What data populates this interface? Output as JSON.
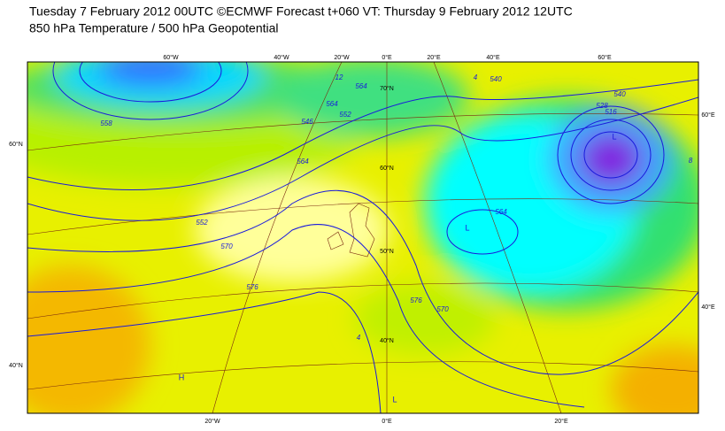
{
  "header": {
    "title": "Tuesday 7 February 2012 00UTC ©ECMWF Forecast t+060 VT: Thursday 9 February 2012 12UTC",
    "subtitle": "850 hPa Temperature / 500 hPa Geopotential"
  },
  "map": {
    "graticule_labels": [
      "60°W",
      "40°W",
      "20°W",
      "0°E",
      "20°E",
      "40°E",
      "60°E",
      "20°W",
      "0°E",
      "20°E",
      "60°N",
      "40°N",
      "60°E",
      "40°E",
      "70°N",
      "60°N",
      "50°N",
      "40°N"
    ],
    "contour_labels": [
      "552",
      "570",
      "576",
      "564",
      "564",
      "540",
      "516",
      "528",
      "540",
      "546",
      "552",
      "558",
      "564",
      "564",
      "570",
      "576",
      "12",
      "4",
      "4",
      "8"
    ],
    "pressure_centers": [
      "L",
      "L",
      "H",
      "L"
    ]
  }
}
